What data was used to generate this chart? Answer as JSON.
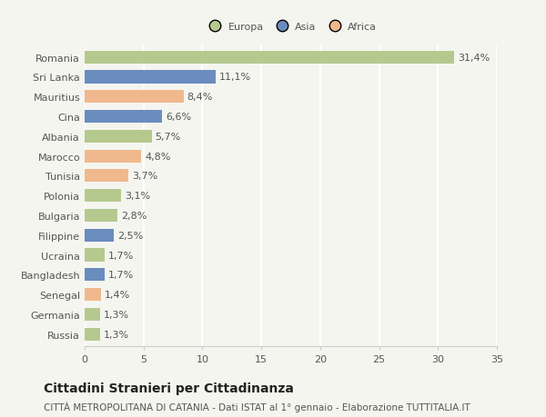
{
  "categories": [
    "Romania",
    "Sri Lanka",
    "Mauritius",
    "Cina",
    "Albania",
    "Marocco",
    "Tunisia",
    "Polonia",
    "Bulgaria",
    "Filippine",
    "Ucraina",
    "Bangladesh",
    "Senegal",
    "Germania",
    "Russia"
  ],
  "values": [
    31.4,
    11.1,
    8.4,
    6.6,
    5.7,
    4.8,
    3.7,
    3.1,
    2.8,
    2.5,
    1.7,
    1.7,
    1.4,
    1.3,
    1.3
  ],
  "labels": [
    "31,4%",
    "11,1%",
    "8,4%",
    "6,6%",
    "5,7%",
    "4,8%",
    "3,7%",
    "3,1%",
    "2,8%",
    "2,5%",
    "1,7%",
    "1,7%",
    "1,4%",
    "1,3%",
    "1,3%"
  ],
  "colors": [
    "#b5c98e",
    "#6b8cbf",
    "#f0b98d",
    "#6b8cbf",
    "#b5c98e",
    "#f0b98d",
    "#f0b98d",
    "#b5c98e",
    "#b5c98e",
    "#6b8cbf",
    "#b5c98e",
    "#6b8cbf",
    "#f0b98d",
    "#b5c98e",
    "#b5c98e"
  ],
  "legend_labels": [
    "Europa",
    "Asia",
    "Africa"
  ],
  "legend_colors": [
    "#b5c98e",
    "#6b8cbf",
    "#f0b98d"
  ],
  "title": "Cittadini Stranieri per Cittadinanza",
  "subtitle": "CITTÀ METROPOLITANA DI CATANIA - Dati ISTAT al 1° gennaio - Elaborazione TUTTITALIA.IT",
  "xlim": [
    0,
    35
  ],
  "xticks": [
    0,
    5,
    10,
    15,
    20,
    25,
    30,
    35
  ],
  "background_color": "#f5f5f0",
  "grid_color": "#ffffff",
  "bar_height": 0.65,
  "title_fontsize": 10,
  "subtitle_fontsize": 7.5,
  "label_fontsize": 8,
  "tick_fontsize": 8,
  "value_fontsize": 8
}
